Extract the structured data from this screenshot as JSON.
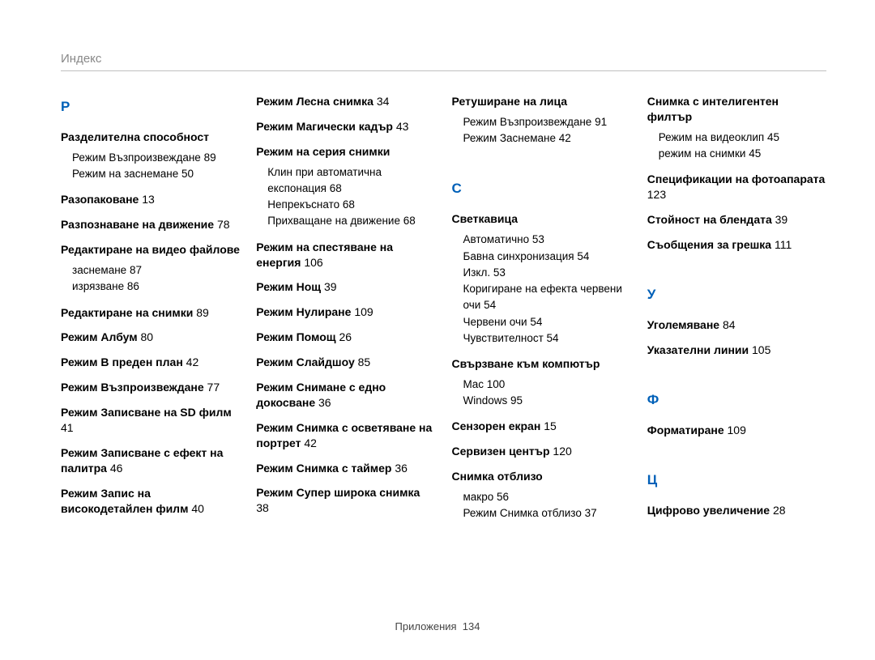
{
  "header": "Индекс",
  "footer": {
    "label": "Приложения",
    "page": "134"
  },
  "columns": [
    {
      "blocks": [
        {
          "type": "letter",
          "text": "Р"
        },
        {
          "type": "entry",
          "title": "Разделителна способност",
          "subs": [
            {
              "text": "Режим Възпроизвеждане",
              "page": "89"
            },
            {
              "text": "Режим на заснемане",
              "page": "50"
            }
          ]
        },
        {
          "type": "entry",
          "title": "Разопаковане",
          "page": "13"
        },
        {
          "type": "entry",
          "title": "Разпознаване на движение",
          "page": "78"
        },
        {
          "type": "entry",
          "title": "Редактиране на видео файлове",
          "subs": [
            {
              "text": "заснемане",
              "page": "87"
            },
            {
              "text": "изрязване",
              "page": "86"
            }
          ]
        },
        {
          "type": "entry",
          "title": "Редактиране на снимки",
          "page": "89"
        },
        {
          "type": "entry",
          "title": "Режим Албум",
          "page": "80"
        },
        {
          "type": "entry",
          "title": "Режим В преден план",
          "page": "42"
        },
        {
          "type": "entry",
          "title": "Режим Възпроизвеждане",
          "page": "77"
        },
        {
          "type": "entry",
          "title": "Режим Записване на SD филм",
          "page": "41"
        },
        {
          "type": "entry",
          "title": "Режим Записване с ефект на палитра",
          "page": "46"
        },
        {
          "type": "entry",
          "title": "Режим Запис на високодетайлен филм",
          "page": "40"
        }
      ]
    },
    {
      "blocks": [
        {
          "type": "entry",
          "title": "Режим Лесна снимка",
          "page": "34"
        },
        {
          "type": "entry",
          "title": "Режим Магически кадър",
          "page": "43"
        },
        {
          "type": "entry",
          "title": "Режим на серия снимки",
          "subs": [
            {
              "text": "Клин при автоматична експонация",
              "page": "68"
            },
            {
              "text": "Непрекъснато",
              "page": "68"
            },
            {
              "text": "Прихващане на движение",
              "page": "68"
            }
          ]
        },
        {
          "type": "entry",
          "title": "Режим на спестяване на енергия",
          "page": "106"
        },
        {
          "type": "entry",
          "title": "Режим Нощ",
          "page": "39"
        },
        {
          "type": "entry",
          "title": "Режим Нулиране",
          "page": "109"
        },
        {
          "type": "entry",
          "title": "Режим Помощ",
          "page": "26"
        },
        {
          "type": "entry",
          "title": "Режим Слайдшоу",
          "page": "85"
        },
        {
          "type": "entry",
          "title": "Режим Снимане с едно докосване",
          "page": "36"
        },
        {
          "type": "entry",
          "title": "Режим Снимка с осветяване на портрет",
          "page": "42"
        },
        {
          "type": "entry",
          "title": "Режим Снимка с таймер",
          "page": "36"
        },
        {
          "type": "entry",
          "title": "Режим Супер широка снимка",
          "page": "38"
        }
      ]
    },
    {
      "blocks": [
        {
          "type": "entry",
          "title": "Ретуширане на лица",
          "subs": [
            {
              "text": "Режим Възпроизвеждане",
              "page": "91"
            },
            {
              "text": "Режим Заснемане",
              "page": "42"
            }
          ]
        },
        {
          "type": "spacer"
        },
        {
          "type": "letter",
          "text": "С"
        },
        {
          "type": "entry",
          "title": "Светкавица",
          "subs": [
            {
              "text": "Автоматично",
              "page": "53"
            },
            {
              "text": "Бавна синхронизация",
              "page": "54"
            },
            {
              "text": "Изкл.",
              "page": "53"
            },
            {
              "text": "Коригиране на ефекта червени очи",
              "page": "54"
            },
            {
              "text": "Червени очи",
              "page": "54"
            },
            {
              "text": "Чувствителност",
              "page": "54"
            }
          ]
        },
        {
          "type": "entry",
          "title": "Свързване към компютър",
          "subs": [
            {
              "text": "Mac",
              "page": "100"
            },
            {
              "text": "Windows",
              "page": "95"
            }
          ]
        },
        {
          "type": "entry",
          "title": "Сензорен екран",
          "page": "15"
        },
        {
          "type": "entry",
          "title": "Сервизен център",
          "page": "120"
        },
        {
          "type": "entry",
          "title": "Снимка отблизо",
          "subs": [
            {
              "text": "макро",
              "page": "56"
            },
            {
              "text": "Режим Снимка отблизо",
              "page": "37"
            }
          ]
        }
      ]
    },
    {
      "blocks": [
        {
          "type": "entry",
          "title": "Снимка с интелигентен филтър",
          "subs": [
            {
              "text": "Режим на видеоклип",
              "page": "45"
            },
            {
              "text": "режим на снимки",
              "page": "45"
            }
          ]
        },
        {
          "type": "entry",
          "title": "Спецификации на фотоапарата",
          "page": "123"
        },
        {
          "type": "entry",
          "title": "Стойност на блендата",
          "page": "39"
        },
        {
          "type": "entry",
          "title": "Съобщения за грешка",
          "page": "111"
        },
        {
          "type": "spacer"
        },
        {
          "type": "letter",
          "text": "У"
        },
        {
          "type": "entry",
          "title": "Уголемяване",
          "page": "84"
        },
        {
          "type": "entry",
          "title": "Указателни линии",
          "page": "105"
        },
        {
          "type": "spacer"
        },
        {
          "type": "letter",
          "text": "Ф"
        },
        {
          "type": "entry",
          "title": "Форматиране",
          "page": "109"
        },
        {
          "type": "spacer"
        },
        {
          "type": "letter",
          "text": "Ц"
        },
        {
          "type": "entry",
          "title": "Цифрово увеличение",
          "page": "28"
        }
      ]
    }
  ],
  "style": {
    "accent_color": "#0060b8",
    "text_color": "#000000",
    "muted_color": "#888888",
    "rule_color": "#bfbfbf",
    "background": "#ffffff",
    "title_fontsize": 14,
    "letter_fontsize": 17,
    "sub_fontsize": 13.5
  }
}
